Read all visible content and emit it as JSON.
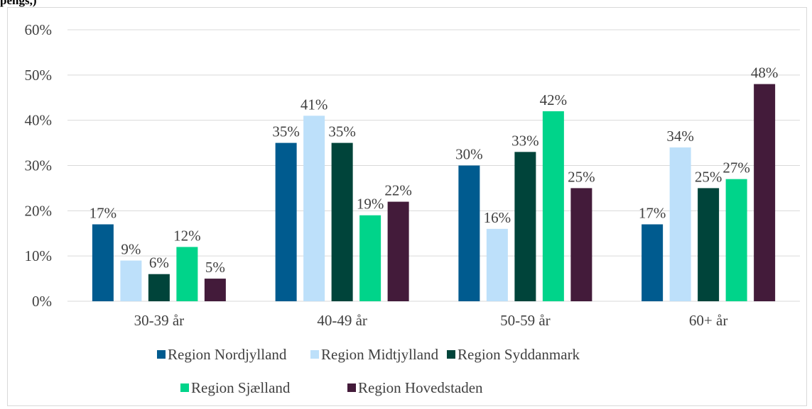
{
  "page": {
    "top_fragment": "pengs,)"
  },
  "chart_data": {
    "type": "bar",
    "categories": [
      "30-39 år",
      "40-49 år",
      "50-59 år",
      "60+ år"
    ],
    "series": [
      {
        "name": "Region Nordjylland",
        "color": "#005b8f",
        "values": [
          17,
          35,
          30,
          17
        ],
        "labels": [
          "17%",
          "35%",
          "30%",
          "17%"
        ]
      },
      {
        "name": "Region Midtjylland",
        "color": "#bde0fa",
        "values": [
          9,
          41,
          16,
          34
        ],
        "labels": [
          "9%",
          "41%",
          "16%",
          "34%"
        ]
      },
      {
        "name": "Region Syddanmark",
        "color": "#00443a",
        "values": [
          6,
          35,
          33,
          25
        ],
        "labels": [
          "6%",
          "35%",
          "33%",
          "25%"
        ]
      },
      {
        "name": "Region Sjælland",
        "color": "#00d48a",
        "values": [
          12,
          19,
          42,
          27
        ],
        "labels": [
          "12%",
          "19%",
          "42%",
          "27%"
        ]
      },
      {
        "name": "Region Hovedstaden",
        "color": "#431b3a",
        "values": [
          5,
          22,
          25,
          48
        ],
        "labels": [
          "5%",
          "22%",
          "25%",
          "48%"
        ]
      }
    ],
    "yticks": [
      "0%",
      "10%",
      "20%",
      "30%",
      "40%",
      "50%",
      "60%"
    ],
    "ylim": [
      0,
      60
    ],
    "grid": true,
    "legend_position": "bottom",
    "title": "",
    "xlabel": "",
    "ylabel": ""
  }
}
